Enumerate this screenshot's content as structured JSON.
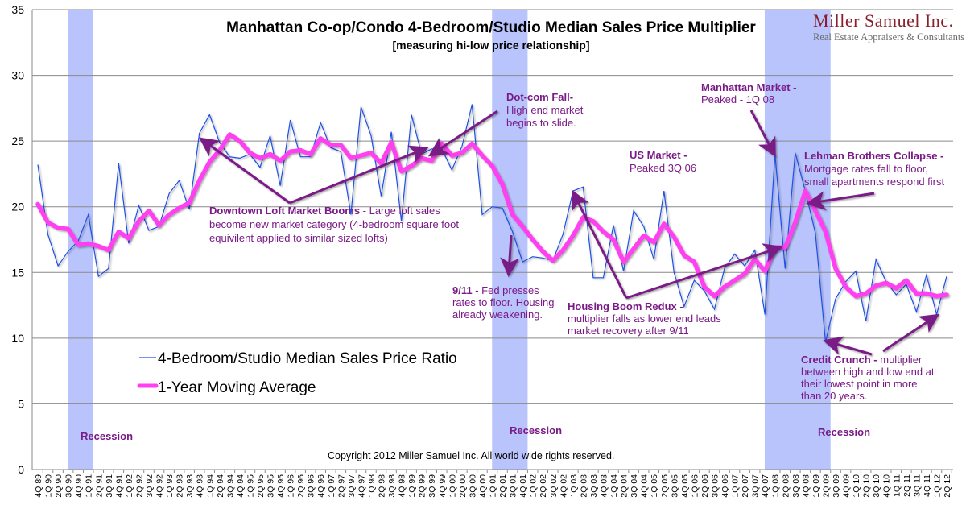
{
  "chart_data": {
    "type": "line",
    "title": "Manhattan Co-op/Condo 4-Bedroom/Studio Median Sales Price Multiplier",
    "subtitle": "[measuring hi-low price relationship]",
    "xlabel": "",
    "ylabel": "",
    "ylim": [
      0,
      35
    ],
    "yticks": [
      0,
      5,
      10,
      15,
      20,
      25,
      30,
      35
    ],
    "grid": true,
    "legend_position": "left-lower",
    "x": [
      "4Q 89",
      "1Q 90",
      "2Q 90",
      "3Q 90",
      "4Q 90",
      "1Q 91",
      "2Q 91",
      "3Q 91",
      "4Q 91",
      "1Q 92",
      "2Q 92",
      "3Q 92",
      "4Q 92",
      "1Q 93",
      "2Q 93",
      "3Q 93",
      "4Q 93",
      "1Q 94",
      "2Q 94",
      "3Q 94",
      "4Q 94",
      "1Q 95",
      "2Q 95",
      "3Q 95",
      "4Q 95",
      "1Q 96",
      "2Q 96",
      "3Q 96",
      "4Q 96",
      "1Q 97",
      "2Q 97",
      "3Q 97",
      "4Q 97",
      "1Q 98",
      "2Q 98",
      "3Q 98",
      "4Q 98",
      "1Q 99",
      "2Q 99",
      "3Q 99",
      "4Q 99",
      "1Q 00",
      "2Q 00",
      "3Q 00",
      "4Q 00",
      "1Q 01",
      "2Q 01",
      "3Q 01",
      "4Q 01",
      "1Q 02",
      "2Q 02",
      "3Q 02",
      "4Q 02",
      "1Q 03",
      "2Q 03",
      "3Q 03",
      "4Q 03",
      "1Q 04",
      "2Q 04",
      "3Q 04",
      "4Q 04",
      "1Q 05",
      "2Q 05",
      "3Q 05",
      "4Q 05",
      "1Q 06",
      "2Q 06",
      "3Q 06",
      "4Q 06",
      "1Q 07",
      "2Q 07",
      "3Q 07",
      "4Q 07",
      "1Q 08",
      "2Q 08",
      "3Q 08",
      "4Q 08",
      "1Q 09",
      "2Q 09",
      "3Q 09",
      "4Q 09",
      "1Q 10",
      "2Q 10",
      "3Q 10",
      "4Q 10",
      "1Q 11",
      "2Q 11",
      "3Q 11",
      "4Q 11",
      "1Q 12",
      "2Q 12"
    ],
    "series": [
      {
        "name": "4-Bedroom/Studio Median Sales Price Ratio",
        "color": "#1f4fe6",
        "values": [
          23.2,
          17.9,
          15.5,
          16.6,
          17.4,
          19.4,
          14.7,
          15.3,
          23.3,
          17.2,
          20.1,
          18.2,
          18.5,
          21.0,
          22.0,
          19.8,
          25.6,
          27.0,
          24.9,
          23.8,
          23.7,
          24.0,
          23.0,
          25.4,
          21.6,
          26.6,
          23.8,
          23.8,
          26.4,
          24.5,
          24.2,
          19.4,
          27.6,
          25.4,
          20.8,
          25.7,
          18.9,
          27.0,
          24.0,
          24.4,
          24.4,
          22.8,
          24.6,
          27.8,
          19.4,
          20.0,
          19.9,
          18.1,
          15.8,
          16.2,
          16.1,
          15.9,
          17.9,
          21.2,
          21.5,
          14.6,
          14.6,
          18.6,
          15.1,
          19.7,
          18.5,
          16.0,
          21.2,
          15.0,
          12.4,
          14.4,
          13.6,
          12.2,
          15.3,
          16.4,
          15.5,
          16.7,
          11.8,
          24.0,
          15.3,
          24.1,
          21.2,
          18.0,
          9.7,
          13.0,
          14.3,
          15.1,
          11.3,
          16.0,
          14.3,
          13.3,
          14.1,
          12.0,
          14.8,
          11.8,
          14.7
        ]
      },
      {
        "name": "1-Year Moving Average",
        "color": "#ff3ff0",
        "values": [
          20.2,
          18.8,
          18.4,
          18.3,
          17.1,
          17.2,
          17.0,
          16.7,
          18.1,
          17.6,
          18.9,
          19.7,
          18.6,
          19.4,
          19.9,
          20.3,
          22.0,
          23.4,
          24.3,
          25.5,
          25.0,
          24.1,
          23.7,
          24.0,
          23.5,
          24.2,
          24.3,
          24.0,
          25.2,
          24.7,
          24.7,
          23.7,
          23.9,
          24.1,
          23.3,
          24.9,
          22.7,
          23.1,
          23.7,
          23.5,
          24.8,
          23.9,
          24.1,
          24.8,
          23.9,
          23.1,
          21.7,
          19.4,
          18.5,
          17.5,
          16.6,
          15.9,
          16.7,
          17.8,
          19.2,
          18.9,
          18.1,
          17.5,
          15.8,
          16.8,
          17.8,
          17.3,
          18.7,
          17.7,
          16.3,
          15.8,
          13.9,
          13.2,
          13.9,
          14.4,
          14.9,
          16.0,
          15.1,
          16.9,
          16.9,
          18.8,
          21.2,
          19.7,
          18.1,
          15.3,
          13.9,
          13.2,
          13.4,
          14.0,
          14.2,
          13.8,
          14.4,
          13.4,
          13.4,
          13.2,
          13.3
        ]
      }
    ],
    "shaded_regions": [
      {
        "label": "Recession",
        "from": "3Q 90",
        "to": "1Q 91",
        "color": "#b8c4fb"
      },
      {
        "label": "Recession",
        "from": "1Q 01",
        "to": "4Q 01",
        "color": "#b8c4fb"
      },
      {
        "label": "Recession",
        "from": "4Q 07",
        "to": "2Q 09",
        "color": "#b8c4fb"
      }
    ],
    "annotations": [
      {
        "bold": "Downtown Loft Market Booms",
        "text": [
          "Downtown Loft Market Booms - Large loft sales",
          "become new market category  (4-bedroom square foot",
          "equivilent applied to similar sized lofts)"
        ],
        "points_to": [
          "1Q 94",
          "4Q 99"
        ]
      },
      {
        "bold": "Dot-com Fall-",
        "text": [
          "Dot-com Fall-",
          "High end market",
          "begins to slide."
        ],
        "points_to": [
          "4Q 99"
        ]
      },
      {
        "bold": "9/11 -",
        "text": [
          "9/11 - Fed presses",
          "rates to floor.  Housing",
          "already weakening."
        ],
        "points_to": [
          "3Q 01"
        ]
      },
      {
        "bold": "Housing Boom Redux -",
        "text": [
          "Housing Boom Redux -",
          "multiplier falls as lower end leads",
          "market recovery after 9/11"
        ],
        "points_to": [
          "1Q 03",
          "1Q 08"
        ]
      },
      {
        "bold": "US Market -",
        "text": [
          "US Market -",
          "Peaked  3Q 06"
        ],
        "points_to": []
      },
      {
        "bold": "Manhattan Market -",
        "text": [
          "Manhattan Market -",
          "Peaked - 1Q 08"
        ],
        "points_to": [
          "1Q 08"
        ]
      },
      {
        "bold": "Lehman Brothers Collapse -",
        "text": [
          "Lehman Brothers Collapse -",
          "Mortgage rates fall to floor,",
          "small apartments respond first"
        ],
        "points_to": [
          "3Q 08"
        ]
      },
      {
        "bold": "Credit Crunch -",
        "text": [
          "Credit Crunch - multiplier",
          "between high and low end at",
          "their lowest point in more",
          "than 20 years."
        ],
        "points_to": [
          "2Q 09",
          "1Q 12"
        ]
      }
    ]
  },
  "logo": {
    "name": "Miller Samuel Inc.",
    "tagline": "Real Estate Appraisers & Consultants"
  },
  "copyright": "Copyright 2012 Miller Samuel Inc. All world wide rights reserved.",
  "legend": {
    "series1": "4-Bedroom/Studio Median Sales Price Ratio",
    "series2": "1-Year Moving Average"
  },
  "labels": {
    "recession": "Recession",
    "loft_bold": "Downtown Loft Market Booms",
    "loft_rest": " - Large loft sales",
    "loft_l2": "become new market category  (4-bedroom square foot",
    "loft_l3": "equivilent applied to similar sized lofts)",
    "dotcom_bold": "Dot-com Fall-",
    "dotcom_l2": "High end market",
    "dotcom_l3": "begins to slide.",
    "nine11_bold": "9/11 -",
    "nine11_rest": " Fed presses",
    "nine11_l2": "rates to floor.  Housing",
    "nine11_l3": "already weakening.",
    "redux_bold": "Housing Boom Redux -",
    "redux_l2": "multiplier falls as lower end leads",
    "redux_l3": "market recovery after 9/11",
    "us_bold": "US Market -",
    "us_l2": "Peaked  3Q 06",
    "manh_bold": "Manhattan Market -",
    "manh_l2": "Peaked - 1Q 08",
    "lehman_bold": "Lehman Brothers Collapse -",
    "lehman_l2": "Mortgage rates fall to floor,",
    "lehman_l3": "small apartments respond first",
    "credit_bold": "Credit Crunch -",
    "credit_rest": " multiplier",
    "credit_l2": "between high and low end at",
    "credit_l3": "their lowest point in more",
    "credit_l4": "than 20 years."
  }
}
